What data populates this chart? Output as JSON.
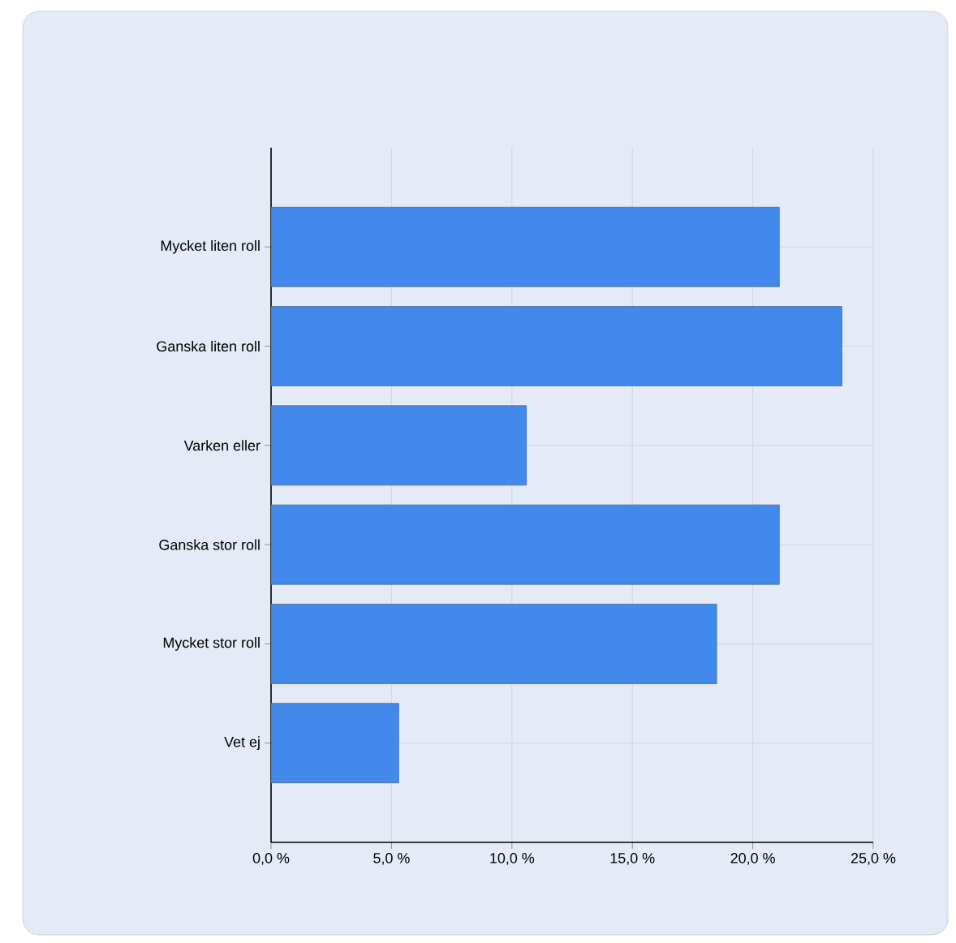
{
  "chart_data": {
    "type": "bar",
    "orientation": "horizontal",
    "categories": [
      "Mycket liten roll",
      "Ganska liten roll",
      "Varken eller",
      "Ganska stor roll",
      "Mycket stor roll",
      "Vet ej"
    ],
    "values": [
      21.1,
      23.7,
      10.6,
      21.1,
      18.5,
      5.3
    ],
    "color": "#4189ea",
    "xlim": [
      0,
      25
    ],
    "xticks": [
      {
        "value": 0,
        "label": "0,0 %"
      },
      {
        "value": 5,
        "label": "5,0 %"
      },
      {
        "value": 10,
        "label": "10,0 %"
      },
      {
        "value": 15,
        "label": "15,0 %"
      },
      {
        "value": 20,
        "label": "20,0 %"
      },
      {
        "value": 25,
        "label": "25,0 %"
      }
    ],
    "grid": true
  }
}
